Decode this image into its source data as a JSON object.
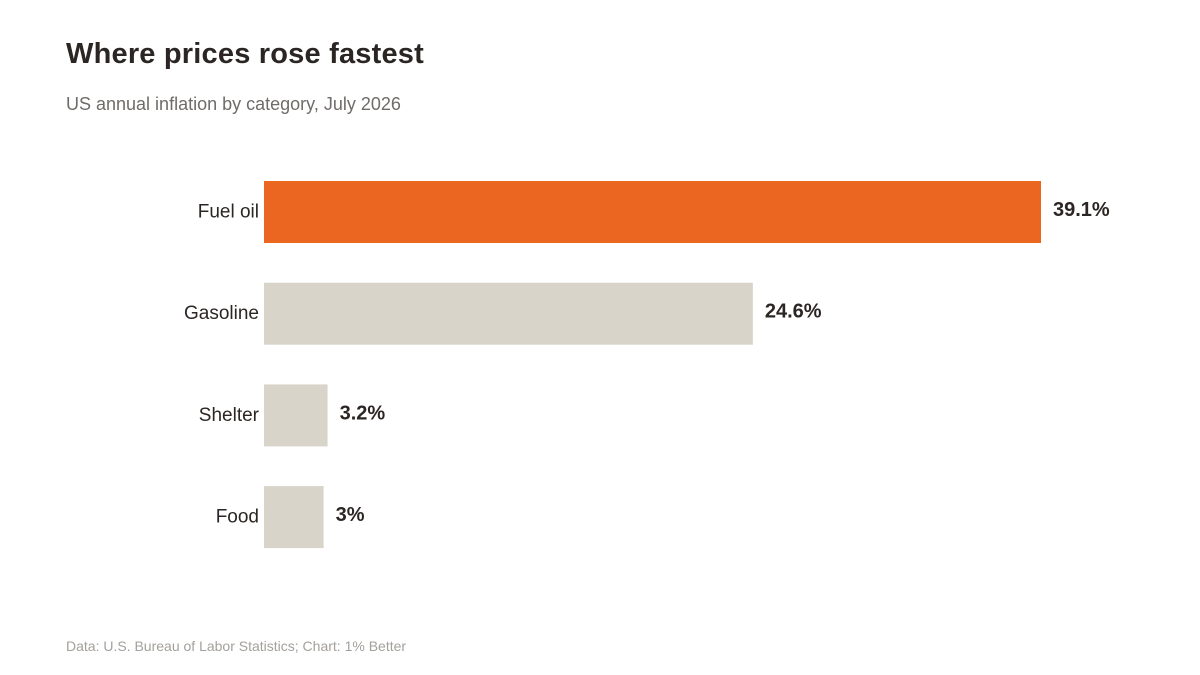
{
  "header": {
    "title": "Where prices rose fastest",
    "subtitle": "US annual inflation by category, July 2026"
  },
  "footer": {
    "source": "Data: U.S. Bureau of Labor Statistics; Chart: 1% Better"
  },
  "colors": {
    "highlight": "#EB6620",
    "bar": "#D9D4CA",
    "label": "#2B2623",
    "value": "#2B2623"
  },
  "chart_data": {
    "type": "bar",
    "orientation": "horizontal",
    "categories": [
      "Fuel oil",
      "Gasoline",
      "Shelter",
      "Food"
    ],
    "values": [
      39.1,
      24.6,
      3.2,
      3
    ],
    "value_labels": [
      "39.1%",
      "24.6%",
      "3.2%",
      "3%"
    ],
    "highlight_category": "Fuel oil",
    "title": "Where prices rose fastest",
    "subtitle": "US annual inflation by category, July 2026",
    "xlabel": "",
    "ylabel": "",
    "xlim": [
      0,
      39.1
    ],
    "grid": false,
    "legend": "none"
  }
}
